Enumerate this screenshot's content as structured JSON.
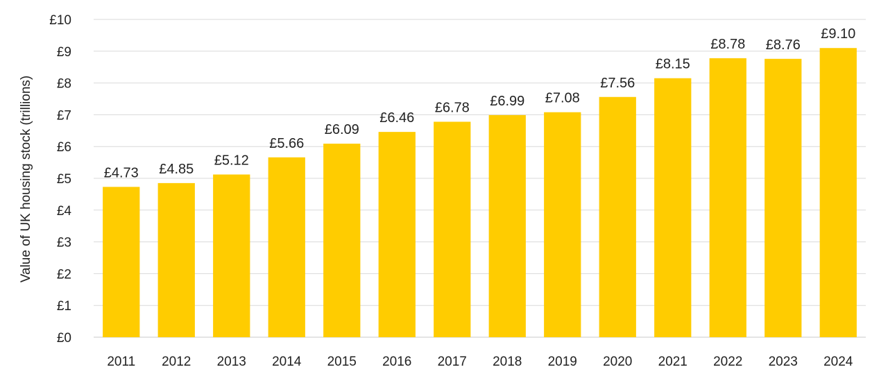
{
  "chart_data": {
    "type": "bar",
    "title": "",
    "xlabel": "",
    "ylabel": "Value of UK housing stock (trillions)",
    "categories": [
      "2011",
      "2012",
      "2013",
      "2014",
      "2015",
      "2016",
      "2017",
      "2018",
      "2019",
      "2020",
      "2021",
      "2022",
      "2023",
      "2024"
    ],
    "values": [
      4.73,
      4.85,
      5.12,
      5.66,
      6.09,
      6.46,
      6.78,
      6.99,
      7.08,
      7.56,
      8.15,
      8.78,
      8.76,
      9.1
    ],
    "data_labels": [
      "£4.73",
      "£4.85",
      "£5.12",
      "£5.66",
      "£6.09",
      "£6.46",
      "£6.78",
      "£6.99",
      "£7.08",
      "£7.56",
      "£8.15",
      "£8.78",
      "£8.76",
      "£9.10"
    ],
    "y_ticks": [
      0,
      1,
      2,
      3,
      4,
      5,
      6,
      7,
      8,
      9,
      10
    ],
    "y_tick_labels": [
      "£0",
      "£1",
      "£2",
      "£3",
      "£4",
      "£5",
      "£6",
      "£7",
      "£8",
      "£9",
      "£10"
    ],
    "ylim": [
      0,
      10
    ],
    "grid": true,
    "legend": "none",
    "bar_color": "#FFCC00"
  }
}
